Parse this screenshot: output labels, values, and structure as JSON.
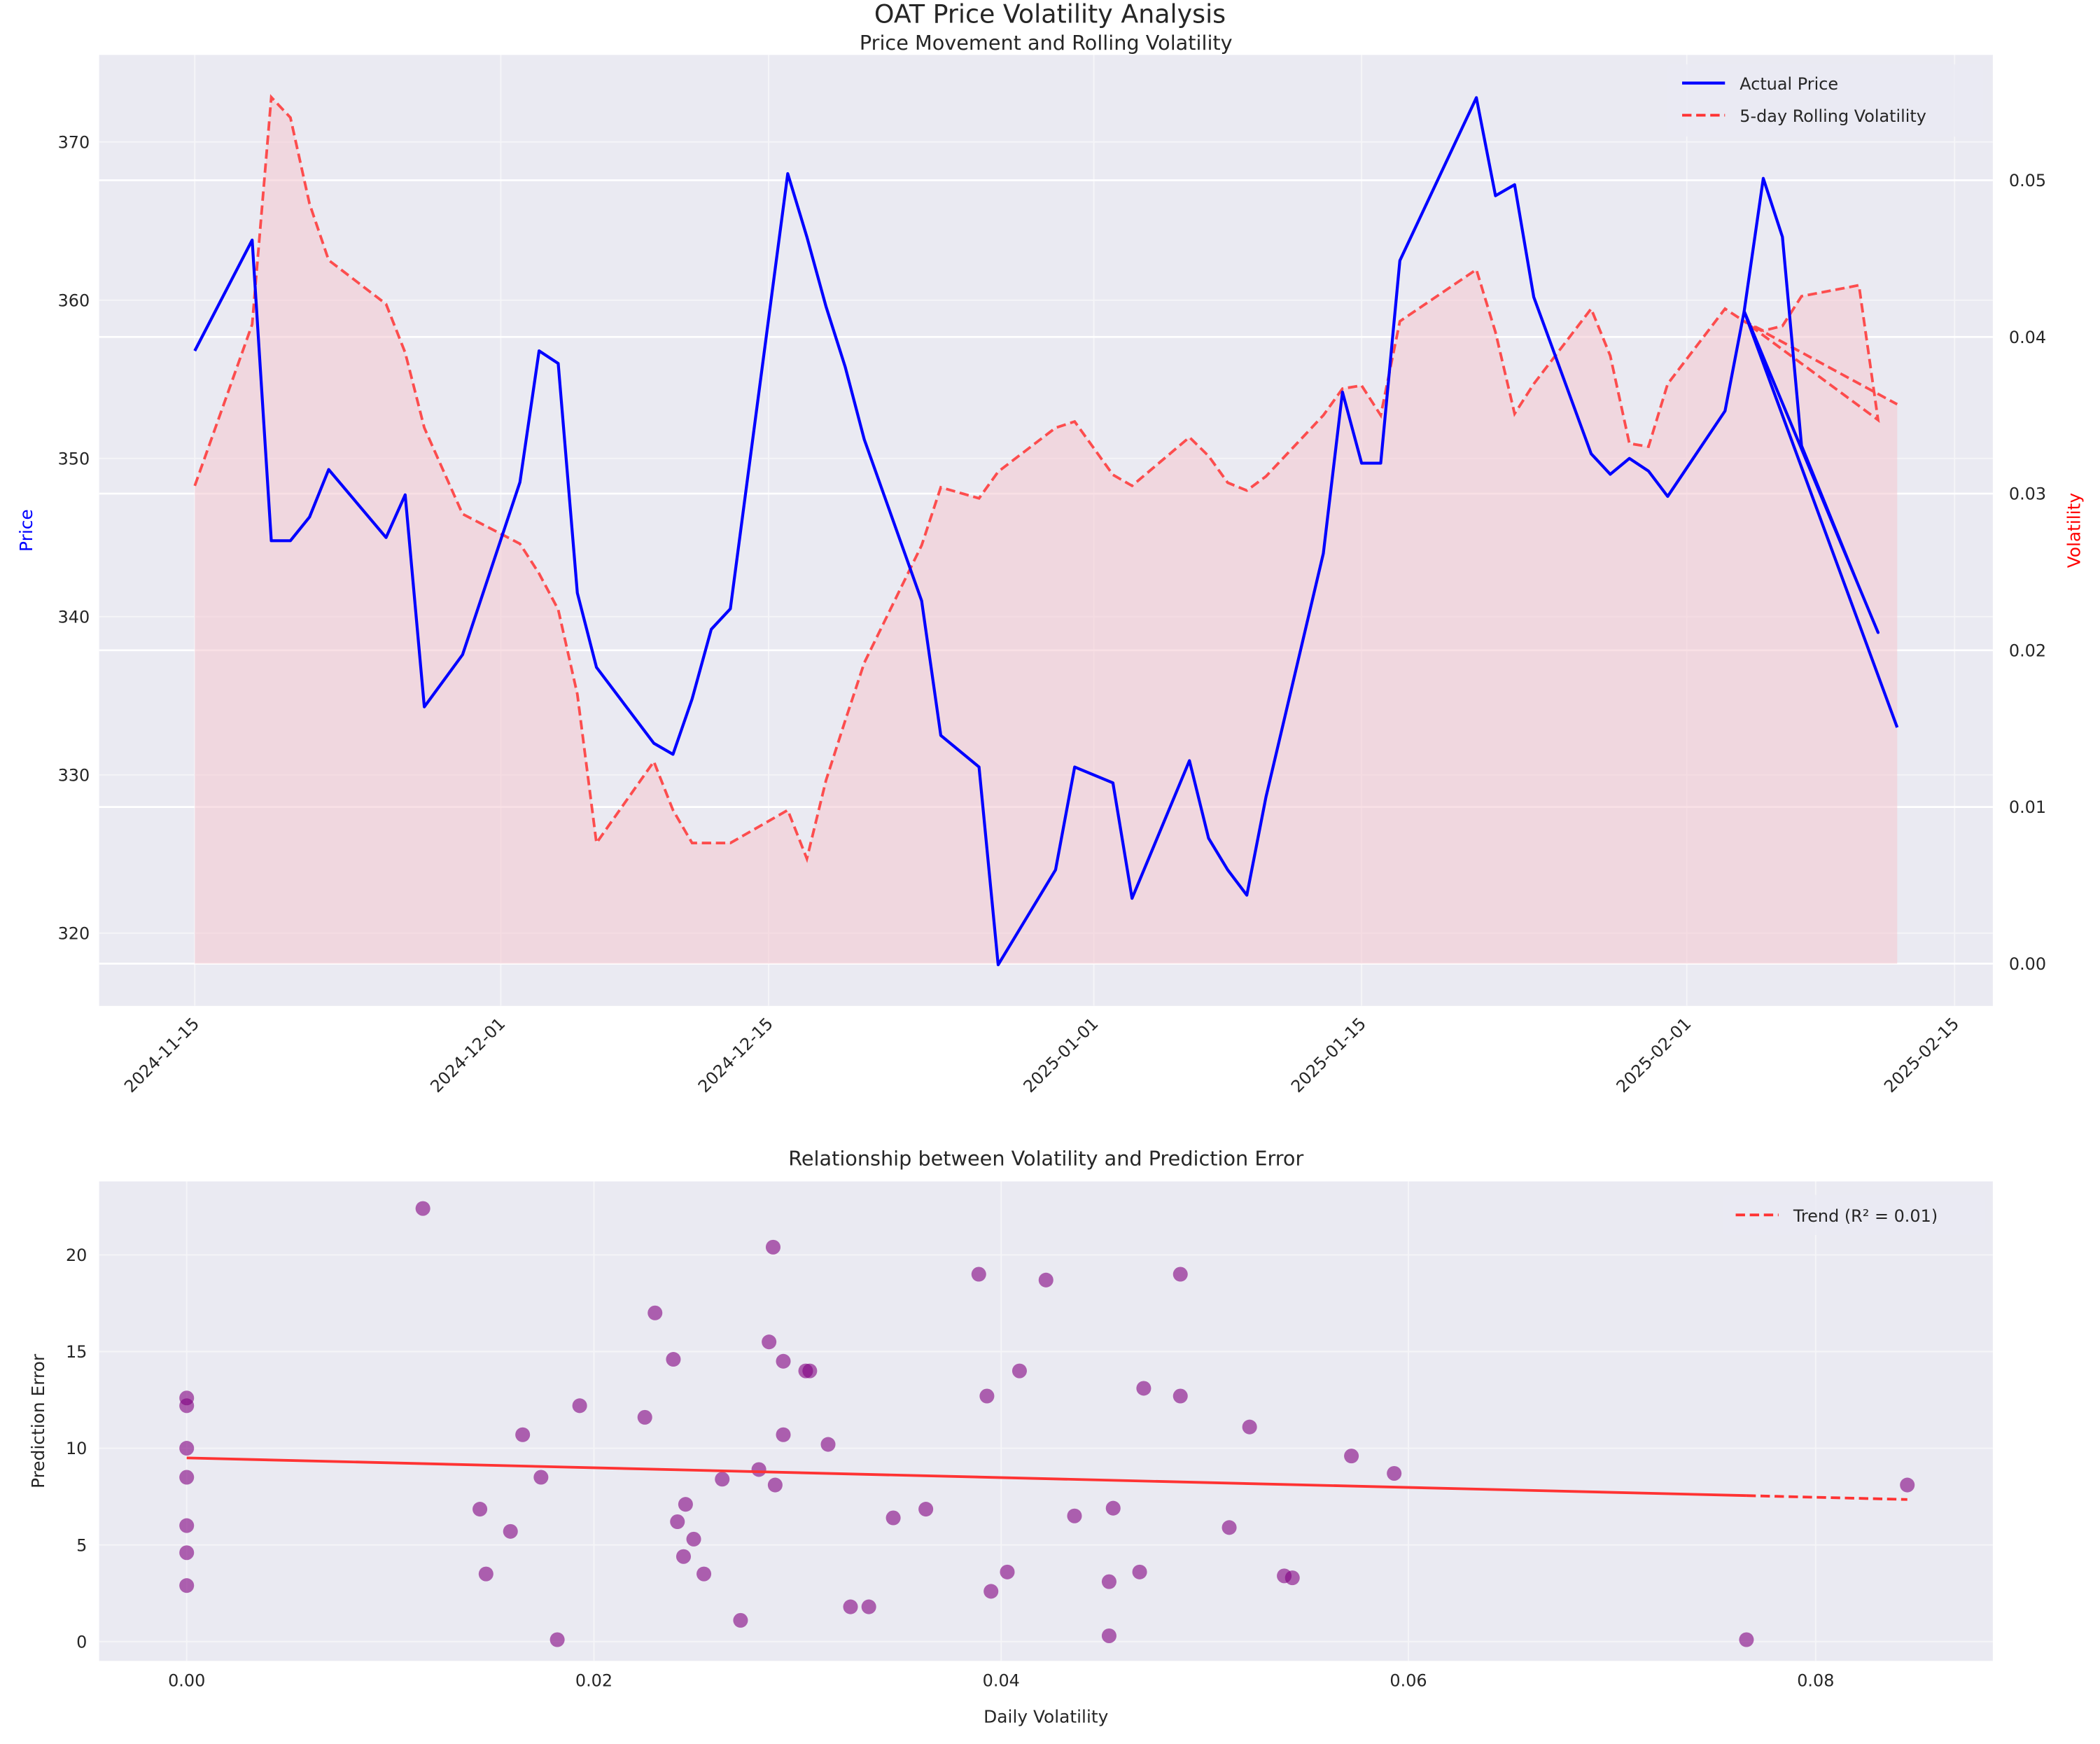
{
  "suptitle": "OAT Price Volatility Analysis",
  "chart_data": [
    {
      "type": "line",
      "title": "Price Movement and Rolling Volatility",
      "ylabel": "Price",
      "ylabel_color": "#0000ff",
      "y2label": "Volatility",
      "y2label_color": "#ff0000",
      "ylim": [
        315.4,
        375.5
      ],
      "y2lim": [
        -0.0027,
        0.058
      ],
      "xlim": [
        "2024-11-10",
        "2025-02-17"
      ],
      "grid": true,
      "legend_position": "top-right",
      "x_ticks": [
        "2024-11-15",
        "2024-12-01",
        "2024-12-15",
        "2025-01-01",
        "2025-01-15",
        "2025-02-01",
        "2025-02-15"
      ],
      "y_ticks": [
        320,
        330,
        340,
        350,
        360,
        370
      ],
      "y2_ticks": [
        "0.00",
        "0.01",
        "0.02",
        "0.03",
        "0.04",
        "0.05"
      ],
      "x": [
        "2024-11-15",
        "2024-11-18",
        "2024-11-19",
        "2024-11-20",
        "2024-11-21",
        "2024-11-22",
        "2024-11-25",
        "2024-11-26",
        "2024-11-27",
        "2024-11-29",
        "2024-12-02",
        "2024-12-03",
        "2024-12-04",
        "2024-12-05",
        "2024-12-06",
        "2024-12-09",
        "2024-12-10",
        "2024-12-11",
        "2024-12-12",
        "2024-12-13",
        "2024-12-16",
        "2024-12-17",
        "2024-12-18",
        "2024-12-19",
        "2024-12-20",
        "2024-12-23",
        "2024-12-24",
        "2024-12-26",
        "2024-12-27",
        "2024-12-30",
        "2024-12-31",
        "2025-01-02",
        "2025-01-03",
        "2025-01-06",
        "2025-01-07",
        "2025-01-08",
        "2025-01-09",
        "2025-01-10",
        "2025-01-13",
        "2025-01-14",
        "2025-01-15",
        "2025-01-16",
        "2025-01-17",
        "2025-01-21",
        "2025-01-22",
        "2025-01-23",
        "2025-01-24",
        "2025-01-27",
        "2025-01-28",
        "2025-01-29",
        "2025-01-30",
        "2025-01-31",
        "2025-02-03",
        "2025-02-04",
        "2025-02-05",
        "2025-02-06",
        "2025-02-07",
        "2025-02-10",
        "2025-02-11",
        "2025-02-04",
        "2025-02-12"
      ],
      "series": [
        {
          "name": "Actual Price",
          "axis": "left",
          "color": "#0000ff",
          "style": "solid",
          "values": [
            356.8,
            363.8,
            344.8,
            344.8,
            346.3,
            349.3,
            345.0,
            347.7,
            334.3,
            337.6,
            348.5,
            356.8,
            356.0,
            341.5,
            336.8,
            332.0,
            331.3,
            334.8,
            339.2,
            340.5,
            368.0,
            364.0,
            359.6,
            355.8,
            351.2,
            341.0,
            332.5,
            330.5,
            318.0,
            324.0,
            330.5,
            329.5,
            322.2,
            330.9,
            326.0,
            324.0,
            322.4,
            328.6,
            344.0,
            354.2,
            349.7,
            349.7,
            362.5,
            372.8,
            366.6,
            367.3,
            360.2,
            350.3,
            349.0,
            350.0,
            349.2,
            347.6,
            353.0,
            359.3,
            367.7,
            364.0,
            350.8,
            341.9,
            339.0,
            359.3,
            333.0
          ]
        },
        {
          "name": "5-day Rolling Volatility",
          "axis": "right",
          "color": "#ff3333",
          "style": "dashed",
          "fill_color": "#f4c6cf",
          "values": [
            0.0305,
            0.0408,
            0.0553,
            0.054,
            0.0485,
            0.0449,
            0.0421,
            0.039,
            0.0342,
            0.0287,
            0.0268,
            0.0249,
            0.0226,
            0.0172,
            0.0077,
            0.0129,
            0.0098,
            0.0077,
            0.0077,
            0.0077,
            0.0098,
            0.0067,
            0.0117,
            0.0155,
            0.0192,
            0.0267,
            0.0304,
            0.0297,
            0.0314,
            0.0342,
            0.0346,
            0.0312,
            0.0305,
            0.0336,
            0.0324,
            0.0307,
            0.0302,
            0.0311,
            0.035,
            0.0367,
            0.0369,
            0.035,
            0.041,
            0.0443,
            0.0403,
            0.0351,
            0.037,
            0.0418,
            0.0388,
            0.0332,
            0.033,
            0.037,
            0.0418,
            0.041,
            0.0404,
            0.0407,
            0.0426,
            0.0433,
            0.0347,
            0.041,
            0.0357
          ]
        }
      ]
    },
    {
      "type": "scatter",
      "title": "Relationship between Volatility and Prediction Error",
      "xlabel": "Daily Volatility",
      "ylabel": "Prediction Error",
      "xlim": [
        -0.0043,
        0.0887
      ],
      "ylim": [
        -1.0,
        23.8
      ],
      "grid": true,
      "legend_position": "top-right",
      "x_ticks": [
        "0.00",
        "0.02",
        "0.04",
        "0.06",
        "0.08"
      ],
      "y_ticks": [
        0,
        5,
        10,
        15,
        20
      ],
      "point_color": "#800080",
      "points": [
        [
          0,
          12.6
        ],
        [
          0,
          12.2
        ],
        [
          0,
          10.0
        ],
        [
          0,
          8.5
        ],
        [
          0,
          6.0
        ],
        [
          0,
          4.6
        ],
        [
          0,
          2.9
        ],
        [
          0.0116,
          22.4
        ],
        [
          0.0144,
          6.85
        ],
        [
          0.0147,
          3.5
        ],
        [
          0.0159,
          5.7
        ],
        [
          0.0165,
          10.7
        ],
        [
          0.0174,
          8.5
        ],
        [
          0.0182,
          0.1
        ],
        [
          0.0193,
          12.2
        ],
        [
          0.0225,
          11.6
        ],
        [
          0.023,
          17.0
        ],
        [
          0.0239,
          14.6
        ],
        [
          0.0241,
          6.2
        ],
        [
          0.0244,
          4.4
        ],
        [
          0.0245,
          7.1
        ],
        [
          0.0249,
          5.3
        ],
        [
          0.0254,
          3.5
        ],
        [
          0.0263,
          8.4
        ],
        [
          0.0272,
          1.1
        ],
        [
          0.0281,
          8.9
        ],
        [
          0.0286,
          15.5
        ],
        [
          0.0288,
          20.4
        ],
        [
          0.0289,
          8.1
        ],
        [
          0.0293,
          10.7
        ],
        [
          0.0293,
          14.5
        ],
        [
          0.0304,
          14.0
        ],
        [
          0.0306,
          14.0
        ],
        [
          0.0315,
          10.2
        ],
        [
          0.0326,
          1.8
        ],
        [
          0.0335,
          1.8
        ],
        [
          0.0347,
          6.4
        ],
        [
          0.0363,
          6.85
        ],
        [
          0.0389,
          19.0
        ],
        [
          0.0393,
          12.7
        ],
        [
          0.0395,
          2.6
        ],
        [
          0.0403,
          3.6
        ],
        [
          0.0409,
          14.0
        ],
        [
          0.0422,
          18.7
        ],
        [
          0.0436,
          6.5
        ],
        [
          0.0453,
          3.1
        ],
        [
          0.0453,
          0.3
        ],
        [
          0.0455,
          6.9
        ],
        [
          0.0468,
          3.6
        ],
        [
          0.047,
          13.1
        ],
        [
          0.0488,
          19.0
        ],
        [
          0.0488,
          12.7
        ],
        [
          0.0512,
          5.9
        ],
        [
          0.0522,
          11.1
        ],
        [
          0.0539,
          3.4
        ],
        [
          0.0543,
          3.3
        ],
        [
          0.0572,
          9.6
        ],
        [
          0.0593,
          8.7
        ],
        [
          0.0766,
          0.1
        ],
        [
          0.0845,
          8.1
        ]
      ],
      "trend": {
        "name": "Trend (R² = 0.01)",
        "color": "#ff3333",
        "x": [
          0,
          0.0845
        ],
        "y": [
          9.5,
          7.35
        ],
        "solid_until": 0.0766
      }
    }
  ]
}
